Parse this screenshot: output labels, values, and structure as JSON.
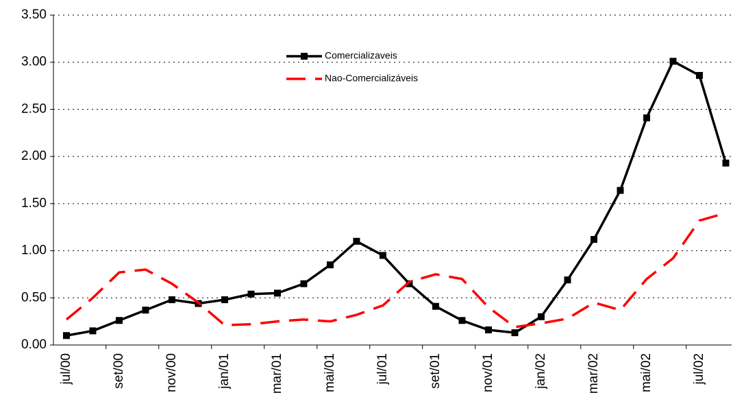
{
  "chart_data": {
    "type": "line",
    "categories": [
      "jul/00",
      null,
      "set/00",
      null,
      "nov/00",
      null,
      "jan/01",
      null,
      "mar/01",
      null,
      "mai/01",
      null,
      "jul/01",
      null,
      "set/01",
      null,
      "nov/01",
      null,
      "jan/02",
      null,
      "mar/02",
      null,
      "mai/02",
      null,
      "jul/02",
      null
    ],
    "series": [
      {
        "name": "Comercializaveis",
        "color": "#000000",
        "values": [
          0.1,
          0.15,
          0.26,
          0.37,
          0.48,
          0.44,
          0.48,
          0.54,
          0.55,
          0.65,
          0.85,
          1.1,
          0.95,
          0.65,
          0.41,
          0.26,
          0.16,
          0.13,
          0.3,
          0.69,
          1.12,
          1.64,
          2.41,
          3.01,
          2.86,
          1.93
        ]
      },
      {
        "name": "Nao-Comercializáveis",
        "color": "#ff0000",
        "values": [
          0.27,
          0.5,
          0.77,
          0.8,
          0.65,
          0.45,
          0.21,
          0.22,
          0.25,
          0.27,
          0.25,
          0.32,
          0.42,
          0.67,
          0.75,
          0.7,
          0.4,
          0.19,
          0.23,
          0.28,
          0.45,
          0.37,
          0.7,
          0.92,
          1.32,
          1.4
        ]
      }
    ],
    "ylim": [
      0,
      3.5
    ],
    "yticks": [
      {
        "value": 0,
        "label": "0.00"
      },
      {
        "value": 0.5,
        "label": "0.50"
      },
      {
        "value": 1,
        "label": "1.00"
      },
      {
        "value": 1.5,
        "label": "1.50"
      },
      {
        "value": 2,
        "label": "2.00"
      },
      {
        "value": 2.5,
        "label": "2.50"
      },
      {
        "value": 3,
        "label": "3.00"
      },
      {
        "value": 3.5,
        "label": "3.50"
      }
    ],
    "grid": true
  }
}
